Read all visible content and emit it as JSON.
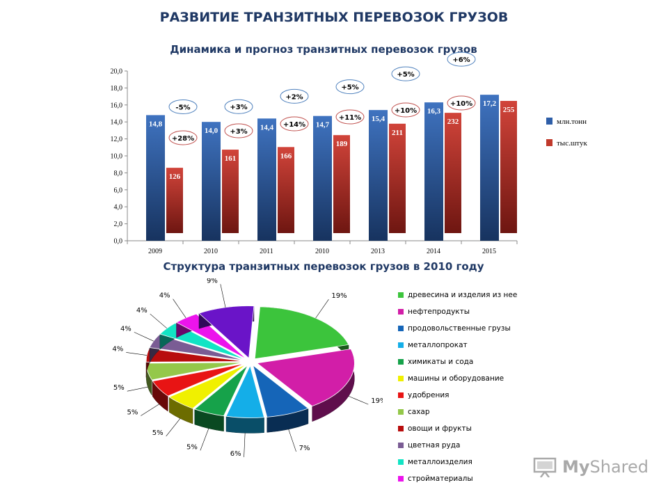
{
  "page": {
    "title": "РАЗВИТИЕ ТРАНЗИТНЫХ ПЕРЕВОЗОК ГРУЗОВ",
    "bar_chart_title": "Динамика и прогноз транзитных перевозок грузов",
    "pie_chart_title": "Структура транзитных перевозок грузов в 2010 году"
  },
  "logo": {
    "text_a": "My",
    "text_b": "Shared",
    "icon": "presentation-board-icon"
  },
  "colors": {
    "tonnes": "#2e5ea8",
    "units": "#c0392b",
    "bubble_border_blue": "#4f81bd",
    "bubble_border_red": "#c0504d"
  },
  "chart_data": [
    {
      "type": "bar",
      "title": "Динамика и прогноз транзитных перевозок грузов",
      "categories": [
        "2009",
        "2010",
        "2011",
        "2010",
        "2013",
        "2014",
        "2015"
      ],
      "ylim": [
        0,
        20
      ],
      "yticks": [
        "0,0",
        "2,0",
        "4,0",
        "6,0",
        "8,0",
        "10,0",
        "12,0",
        "14,0",
        "16,0",
        "18,0",
        "20,0"
      ],
      "grid": false,
      "legend_position": "right",
      "series": [
        {
          "name": "млн.тонн",
          "values": [
            14.8,
            14.0,
            14.4,
            14.7,
            15.4,
            16.3,
            17.2
          ],
          "labels": [
            "14,8",
            "14,0",
            "14,4",
            "14,7",
            "15,4",
            "16,3",
            "17,2"
          ],
          "growth": [
            "-5%",
            "+3%",
            "+2%",
            "+5%",
            "+5%",
            "+6%"
          ]
        },
        {
          "name": "тыс.штук",
          "values": [
            126,
            161,
            166,
            189,
            211,
            232,
            255
          ],
          "labels": [
            "126",
            "161",
            "166",
            "189",
            "211",
            "232",
            "255"
          ],
          "growth": [
            "+28%",
            "+3%",
            "+14%",
            "+11%",
            "+10%",
            "+10%"
          ]
        }
      ]
    },
    {
      "type": "pie",
      "title": "Структура транзитных перевозок грузов в 2010 году",
      "legend_position": "right",
      "slices": [
        {
          "name": "древесина и изделия из нее",
          "value": 19,
          "label": "19%",
          "color": "#3cc43c"
        },
        {
          "name": "нефтепродукты",
          "value": 19,
          "label": "19%",
          "color": "#d21ea8"
        },
        {
          "name": "продовольственные грузы",
          "value": 7,
          "label": "7%",
          "color": "#1565b8"
        },
        {
          "name": "металлопрокат",
          "value": 6,
          "label": "6%",
          "color": "#14aee8"
        },
        {
          "name": "химикаты и сода",
          "value": 5,
          "label": "5%",
          "color": "#16a24a"
        },
        {
          "name": "машины и оборудование",
          "value": 5,
          "label": "5%",
          "color": "#f0f000"
        },
        {
          "name": "удобрения",
          "value": 5,
          "label": "5%",
          "color": "#e81414"
        },
        {
          "name": "сахар",
          "value": 5,
          "label": "5%",
          "color": "#94c84a"
        },
        {
          "name": "овощи и фрукты",
          "value": 4,
          "label": "4%",
          "color": "#b80d0d"
        },
        {
          "name": "цветная руда",
          "value": 4,
          "label": "4%",
          "color": "#7a5c94"
        },
        {
          "name": "металлоизделия",
          "value": 4,
          "label": "4%",
          "color": "#12e4c4"
        },
        {
          "name": "стройматериалы",
          "value": 4,
          "label": "4%",
          "color": "#ec14ec"
        },
        {
          "name": "",
          "value": 9,
          "label": "9%",
          "color": "#6a14c8"
        }
      ]
    }
  ]
}
